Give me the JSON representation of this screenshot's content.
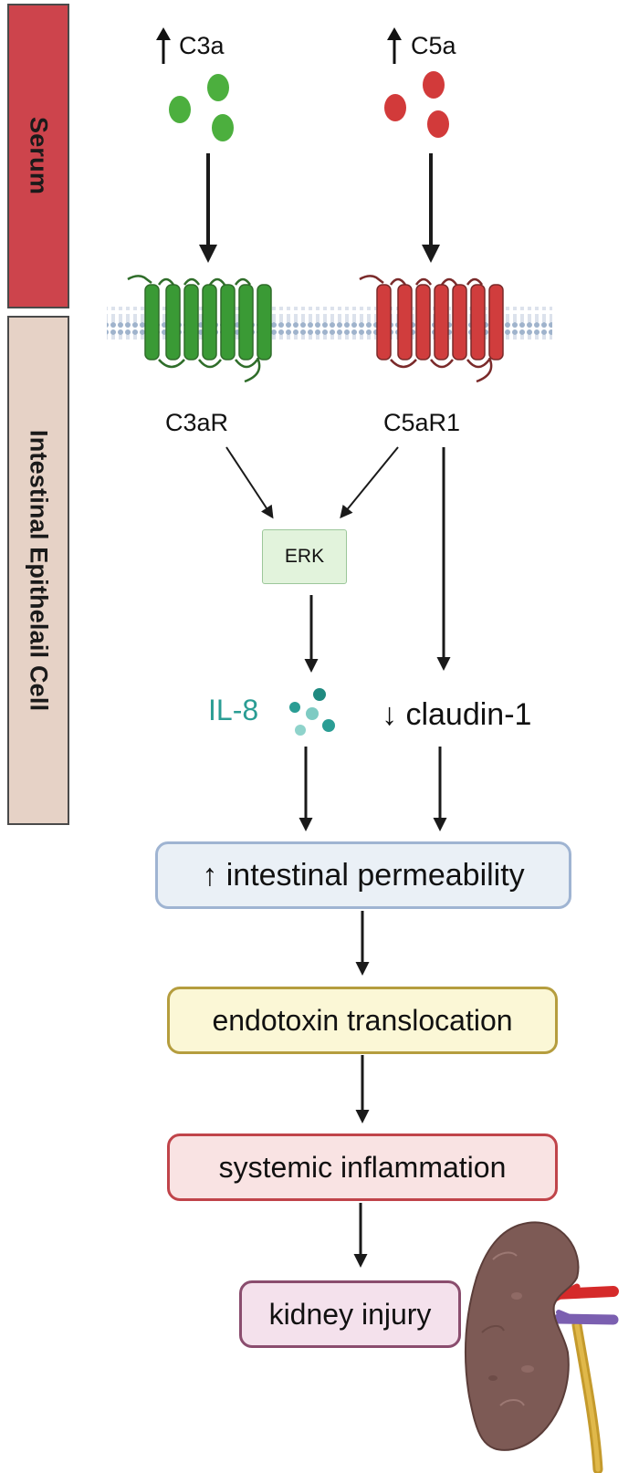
{
  "side_labels": {
    "serum": "Serum",
    "epithelial": "Intestinal Epithelail Cell"
  },
  "ligands": {
    "c3a": "C3a",
    "c5a": "C5a",
    "up_arrow": "↑"
  },
  "receptors": {
    "c3ar": "C3aR",
    "c5ar1": "C5aR1"
  },
  "signaling": {
    "erk": "ERK",
    "il8": "IL-8",
    "claudin": "↓ claudin-1"
  },
  "outcomes": {
    "permeability": "↑ intestinal permeability",
    "endotoxin": "endotoxin translocation",
    "inflammation": "systemic inflammation",
    "kidney": "kidney injury"
  },
  "colors": {
    "serum_bar": "#cd444c",
    "epithelial_bar": "#e6d2c6",
    "c3a_green": "#4caf3e",
    "c5a_red": "#d23a3a",
    "il8_teal": "#2a9d94",
    "erk_fill": "#e2f3dc",
    "permeability_fill": "#eaf0f6",
    "endotoxin_fill": "#fbf7d6",
    "inflammation_fill": "#f9e3e3",
    "kidney_fill": "#f4e1ec"
  },
  "icons": [
    "membrane-bilayer",
    "gpcr-receptor-green",
    "gpcr-receptor-red",
    "kidney-illustration"
  ]
}
